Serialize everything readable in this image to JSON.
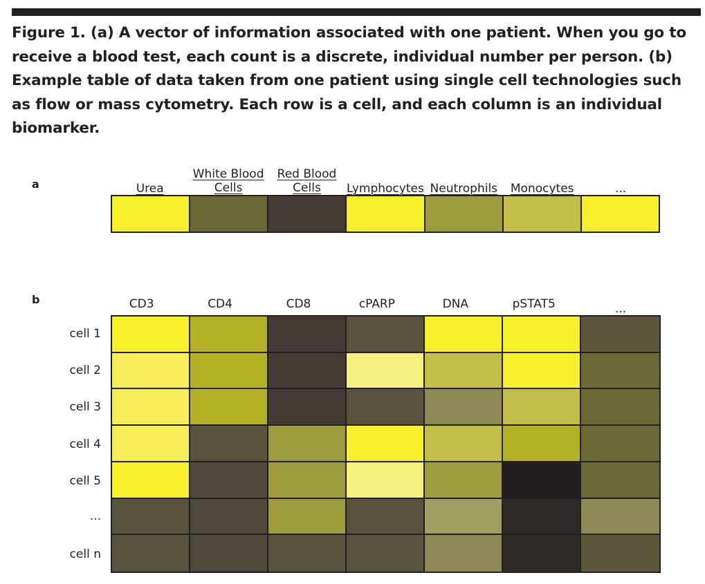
{
  "caption": "Figure 1. (a) A vector of information associated with one patient. When you go to receive a blood test, each count is a discrete, individual number per person. (b) Example table of data taken from one patient using single cell technologies such as flow or mass cytometry. Each row is a cell, and each column is an individual biomarker.",
  "panel_a": {
    "label": "a",
    "columns": [
      "Urea",
      "White Blood\nCells",
      "Red Blood\nCells",
      "Lymphocytes",
      "Neutrophils",
      "Monocytes",
      "..."
    ],
    "colors": [
      "#f5ef2c",
      "#6a6834",
      "#443d37",
      "#f5ef2c",
      "#9c9b3e",
      "#c1bf48",
      "#f5ef2c"
    ]
  },
  "panel_b": {
    "label": "b",
    "columns": [
      "CD3",
      "CD4",
      "CD8",
      "cPARP",
      "DNA",
      "pSTAT5",
      "..."
    ],
    "rows": [
      "cell 1",
      "cell 2",
      "cell 3",
      "cell 4",
      "cell 5",
      "...",
      "cell n"
    ],
    "colors": [
      [
        "#f5ef2c",
        "#b3b226",
        "#423b35",
        "#58533f",
        "#f5ef2c",
        "#f5ef2c",
        "#5d573b"
      ],
      [
        "#f5ee58",
        "#b3b226",
        "#423b35",
        "#f5f07e",
        "#c1bf48",
        "#f5ef2c",
        "#6a6834"
      ],
      [
        "#f5ee58",
        "#b3b226",
        "#423b35",
        "#58533f",
        "#8d8a56",
        "#c1bf48",
        "#6a6834"
      ],
      [
        "#f5ee58",
        "#58533f",
        "#9c9b3e",
        "#f5ef2c",
        "#c1bf48",
        "#b3b226",
        "#6a6834"
      ],
      [
        "#f5ef2c",
        "#4e493c",
        "#9c9b3e",
        "#f5f07e",
        "#9c9b3e",
        "#231f20",
        "#6a6834"
      ],
      [
        "#58533f",
        "#4e493c",
        "#9c9b3e",
        "#58533f",
        "#a09f63",
        "#302a27",
        "#8d8a56"
      ],
      [
        "#58533f",
        "#4e493c",
        "#58533f",
        "#58533f",
        "#8d8a56",
        "#302a27",
        "#5d573b"
      ]
    ]
  }
}
